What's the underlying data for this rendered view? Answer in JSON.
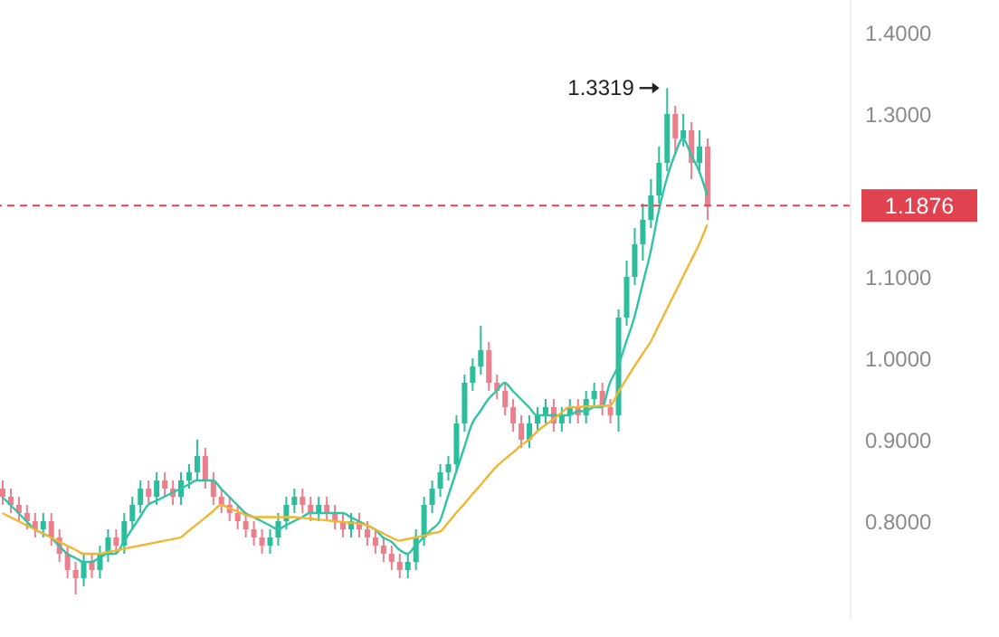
{
  "chart_data": {
    "type": "candlestick",
    "categories": [
      null,
      null,
      null,
      null,
      null,
      null,
      null,
      null,
      null,
      null,
      null,
      null,
      null,
      null,
      null,
      null,
      null,
      null,
      null,
      null,
      null,
      null,
      null,
      null,
      null,
      null,
      null,
      null,
      null,
      null,
      null,
      null,
      null,
      null,
      null,
      null,
      null,
      null,
      null,
      null,
      null,
      null,
      null,
      null,
      null,
      null,
      null,
      null,
      null,
      null,
      null,
      null,
      null,
      null,
      null,
      null,
      null,
      null,
      null,
      null,
      null,
      null,
      null,
      null,
      null,
      null,
      null,
      null,
      null,
      null,
      null,
      null,
      null,
      null,
      null,
      null,
      null,
      null,
      null,
      null,
      null,
      null,
      null,
      null,
      null,
      null,
      null,
      null
    ],
    "ohlc": [
      [
        0.84,
        0.85,
        0.82,
        0.83
      ],
      [
        0.83,
        0.84,
        0.81,
        0.82
      ],
      [
        0.82,
        0.83,
        0.8,
        0.81
      ],
      [
        0.81,
        0.82,
        0.79,
        0.8
      ],
      [
        0.8,
        0.81,
        0.78,
        0.79
      ],
      [
        0.79,
        0.81,
        0.78,
        0.8
      ],
      [
        0.8,
        0.81,
        0.77,
        0.78
      ],
      [
        0.78,
        0.79,
        0.75,
        0.76
      ],
      [
        0.76,
        0.77,
        0.73,
        0.74
      ],
      [
        0.74,
        0.75,
        0.71,
        0.73
      ],
      [
        0.73,
        0.76,
        0.72,
        0.75
      ],
      [
        0.75,
        0.76,
        0.73,
        0.74
      ],
      [
        0.74,
        0.77,
        0.73,
        0.76
      ],
      [
        0.76,
        0.79,
        0.75,
        0.78
      ],
      [
        0.78,
        0.79,
        0.76,
        0.77
      ],
      [
        0.77,
        0.81,
        0.76,
        0.8
      ],
      [
        0.8,
        0.83,
        0.79,
        0.82
      ],
      [
        0.82,
        0.85,
        0.81,
        0.84
      ],
      [
        0.84,
        0.85,
        0.82,
        0.83
      ],
      [
        0.83,
        0.86,
        0.82,
        0.85
      ],
      [
        0.85,
        0.86,
        0.83,
        0.84
      ],
      [
        0.84,
        0.85,
        0.82,
        0.83
      ],
      [
        0.83,
        0.86,
        0.82,
        0.85
      ],
      [
        0.85,
        0.87,
        0.84,
        0.86
      ],
      [
        0.86,
        0.9,
        0.85,
        0.88
      ],
      [
        0.88,
        0.89,
        0.84,
        0.85
      ],
      [
        0.85,
        0.86,
        0.82,
        0.83
      ],
      [
        0.83,
        0.84,
        0.81,
        0.82
      ],
      [
        0.82,
        0.83,
        0.8,
        0.81
      ],
      [
        0.81,
        0.82,
        0.79,
        0.8
      ],
      [
        0.8,
        0.81,
        0.78,
        0.79
      ],
      [
        0.79,
        0.8,
        0.77,
        0.78
      ],
      [
        0.78,
        0.79,
        0.76,
        0.77
      ],
      [
        0.77,
        0.79,
        0.76,
        0.78
      ],
      [
        0.78,
        0.81,
        0.77,
        0.8
      ],
      [
        0.8,
        0.83,
        0.79,
        0.82
      ],
      [
        0.82,
        0.84,
        0.81,
        0.83
      ],
      [
        0.83,
        0.84,
        0.81,
        0.82
      ],
      [
        0.82,
        0.83,
        0.8,
        0.81
      ],
      [
        0.81,
        0.83,
        0.8,
        0.82
      ],
      [
        0.82,
        0.83,
        0.8,
        0.81
      ],
      [
        0.81,
        0.82,
        0.79,
        0.8
      ],
      [
        0.8,
        0.81,
        0.78,
        0.79
      ],
      [
        0.79,
        0.81,
        0.78,
        0.8
      ],
      [
        0.8,
        0.81,
        0.78,
        0.79
      ],
      [
        0.79,
        0.8,
        0.77,
        0.78
      ],
      [
        0.78,
        0.79,
        0.76,
        0.77
      ],
      [
        0.77,
        0.78,
        0.75,
        0.76
      ],
      [
        0.76,
        0.77,
        0.74,
        0.75
      ],
      [
        0.75,
        0.76,
        0.73,
        0.74
      ],
      [
        0.74,
        0.76,
        0.73,
        0.75
      ],
      [
        0.75,
        0.79,
        0.74,
        0.78
      ],
      [
        0.78,
        0.83,
        0.77,
        0.82
      ],
      [
        0.82,
        0.85,
        0.81,
        0.84
      ],
      [
        0.84,
        0.87,
        0.83,
        0.86
      ],
      [
        0.86,
        0.88,
        0.85,
        0.87
      ],
      [
        0.87,
        0.93,
        0.86,
        0.92
      ],
      [
        0.92,
        0.98,
        0.91,
        0.97
      ],
      [
        0.97,
        1.0,
        0.96,
        0.99
      ],
      [
        0.99,
        1.04,
        0.98,
        1.01
      ],
      [
        1.01,
        1.02,
        0.96,
        0.97
      ],
      [
        0.97,
        0.98,
        0.95,
        0.96
      ],
      [
        0.96,
        0.97,
        0.93,
        0.94
      ],
      [
        0.94,
        0.95,
        0.91,
        0.92
      ],
      [
        0.92,
        0.93,
        0.89,
        0.9
      ],
      [
        0.9,
        0.93,
        0.89,
        0.92
      ],
      [
        0.92,
        0.94,
        0.91,
        0.93
      ],
      [
        0.93,
        0.95,
        0.92,
        0.94
      ],
      [
        0.94,
        0.95,
        0.91,
        0.92
      ],
      [
        0.92,
        0.94,
        0.91,
        0.93
      ],
      [
        0.93,
        0.95,
        0.92,
        0.94
      ],
      [
        0.94,
        0.95,
        0.92,
        0.93
      ],
      [
        0.93,
        0.96,
        0.92,
        0.95
      ],
      [
        0.95,
        0.97,
        0.94,
        0.96
      ],
      [
        0.96,
        0.97,
        0.93,
        0.94
      ],
      [
        0.94,
        0.95,
        0.92,
        0.93
      ],
      [
        0.93,
        1.06,
        0.91,
        1.05
      ],
      [
        1.05,
        1.12,
        1.04,
        1.1
      ],
      [
        1.1,
        1.16,
        1.09,
        1.14
      ],
      [
        1.14,
        1.19,
        1.12,
        1.17
      ],
      [
        1.17,
        1.22,
        1.16,
        1.2
      ],
      [
        1.2,
        1.26,
        1.19,
        1.24
      ],
      [
        1.24,
        1.3319,
        1.23,
        1.3
      ],
      [
        1.3,
        1.31,
        1.25,
        1.27
      ],
      [
        1.27,
        1.3,
        1.26,
        1.28
      ],
      [
        1.28,
        1.29,
        1.22,
        1.24
      ],
      [
        1.24,
        1.28,
        1.23,
        1.26
      ],
      [
        1.26,
        1.27,
        1.17,
        1.1876
      ]
    ],
    "series": [
      {
        "type": "line",
        "color": "#2ec4a4",
        "values": [
          0.83,
          0.82,
          0.81,
          0.8,
          0.79,
          0.785,
          0.78,
          0.77,
          0.76,
          0.755,
          0.75,
          0.75,
          0.755,
          0.76,
          0.76,
          0.775,
          0.79,
          0.805,
          0.82,
          0.825,
          0.83,
          0.835,
          0.84,
          0.845,
          0.85,
          0.85,
          0.85,
          0.84,
          0.83,
          0.82,
          0.81,
          0.805,
          0.8,
          0.795,
          0.79,
          0.795,
          0.8,
          0.805,
          0.81,
          0.81,
          0.81,
          0.81,
          0.81,
          0.805,
          0.8,
          0.795,
          0.79,
          0.78,
          0.775,
          0.765,
          0.76,
          0.77,
          0.78,
          0.79,
          0.8,
          0.83,
          0.86,
          0.89,
          0.92,
          0.935,
          0.95,
          0.96,
          0.97,
          0.96,
          0.95,
          0.94,
          0.93,
          0.93,
          0.93,
          0.93,
          0.93,
          0.935,
          0.935,
          0.94,
          0.94,
          0.97,
          0.99,
          1.02,
          1.05,
          1.09,
          1.13,
          1.18,
          1.22,
          1.25,
          1.27,
          1.25,
          1.23,
          1.2
        ]
      },
      {
        "type": "line",
        "color": "#f2b632",
        "values": [
          0.81,
          0.805,
          0.8,
          0.795,
          0.79,
          0.785,
          0.78,
          0.775,
          0.77,
          0.765,
          0.76,
          0.76,
          0.76,
          0.762,
          0.764,
          0.766,
          0.768,
          0.77,
          0.772,
          0.774,
          0.776,
          0.778,
          0.78,
          0.788,
          0.796,
          0.804,
          0.812,
          0.82,
          0.816,
          0.812,
          0.808,
          0.805,
          0.805,
          0.805,
          0.805,
          0.805,
          0.805,
          0.804,
          0.803,
          0.802,
          0.801,
          0.8,
          0.799,
          0.798,
          0.797,
          0.795,
          0.79,
          0.785,
          0.78,
          0.776,
          0.778,
          0.78,
          0.782,
          0.785,
          0.787,
          0.798,
          0.81,
          0.821,
          0.833,
          0.844,
          0.856,
          0.867,
          0.876,
          0.884,
          0.893,
          0.9,
          0.91,
          0.918,
          0.925,
          0.933,
          0.94,
          0.94,
          0.941,
          0.941,
          0.942,
          0.942,
          0.958,
          0.974,
          0.99,
          1.005,
          1.02,
          1.04,
          1.06,
          1.08,
          1.1,
          1.12,
          1.14,
          1.164
        ]
      }
    ],
    "ylim": [
      0.68,
      1.44
    ],
    "yticks": [
      {
        "value": 0.8,
        "label": "0.8000"
      },
      {
        "value": 0.9,
        "label": "0.9000"
      },
      {
        "value": 1.0,
        "label": "1.0000"
      },
      {
        "value": 1.1,
        "label": "1.1000"
      },
      {
        "value": 1.3,
        "label": "1.3000"
      },
      {
        "value": 1.4,
        "label": "1.4000"
      }
    ],
    "ref_lines": [
      {
        "axis": "y",
        "value": 1.1876,
        "label": "1.1876",
        "color": "#e0424f",
        "line_style": "dashed"
      }
    ],
    "annotations": [
      "1.3319"
    ]
  }
}
